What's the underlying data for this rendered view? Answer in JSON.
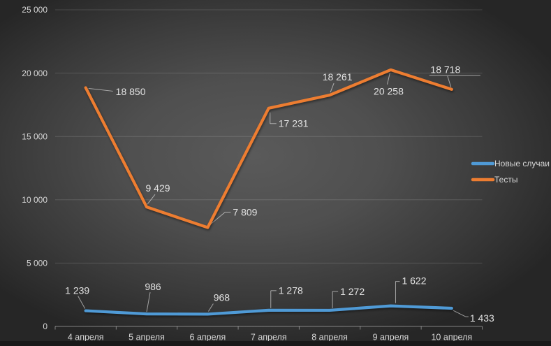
{
  "window": {
    "bottom_edge_color": "#191919"
  },
  "style": {
    "background_center": "#5a5a5a",
    "background_edge": "#262626",
    "axis_text_color": "#d6d6d6",
    "data_label_color": "#e2e2e2",
    "gridline_color": "rgba(255,255,255,0.14)",
    "axis_line_color": "rgba(255,255,255,0.42)",
    "leader_line_color": "rgba(255,255,255,0.55)"
  },
  "chart_data": {
    "type": "line",
    "title": "",
    "categories": [
      "4 апреля",
      "5 апреля",
      "6 апреля",
      "7 апреля",
      "8 апреля",
      "9 апреля",
      "10 апреля"
    ],
    "series": [
      {
        "name": "Новые случаи",
        "color": "#4f9ad6",
        "values": [
          1239,
          986,
          968,
          1278,
          1272,
          1622,
          1433
        ],
        "data_labels": [
          "1 239",
          "986",
          "968",
          "1 278",
          "1 272",
          "1 622",
          "1 433"
        ]
      },
      {
        "name": "Тесты",
        "color": "#ed7d31",
        "values": [
          18850,
          9429,
          7809,
          17231,
          18261,
          20258,
          18718
        ],
        "data_labels": [
          "18 850",
          "9 429",
          "7 809",
          "17 231",
          "18 261",
          "20 258",
          "18 718"
        ]
      }
    ],
    "ylim": [
      0,
      25000
    ],
    "yticks": [
      0,
      5000,
      10000,
      15000,
      20000,
      25000
    ],
    "ytick_labels": [
      "0",
      "5 000",
      "10 000",
      "15 000",
      "20 000",
      "25 000"
    ],
    "grid": true,
    "legend_position": "right"
  }
}
